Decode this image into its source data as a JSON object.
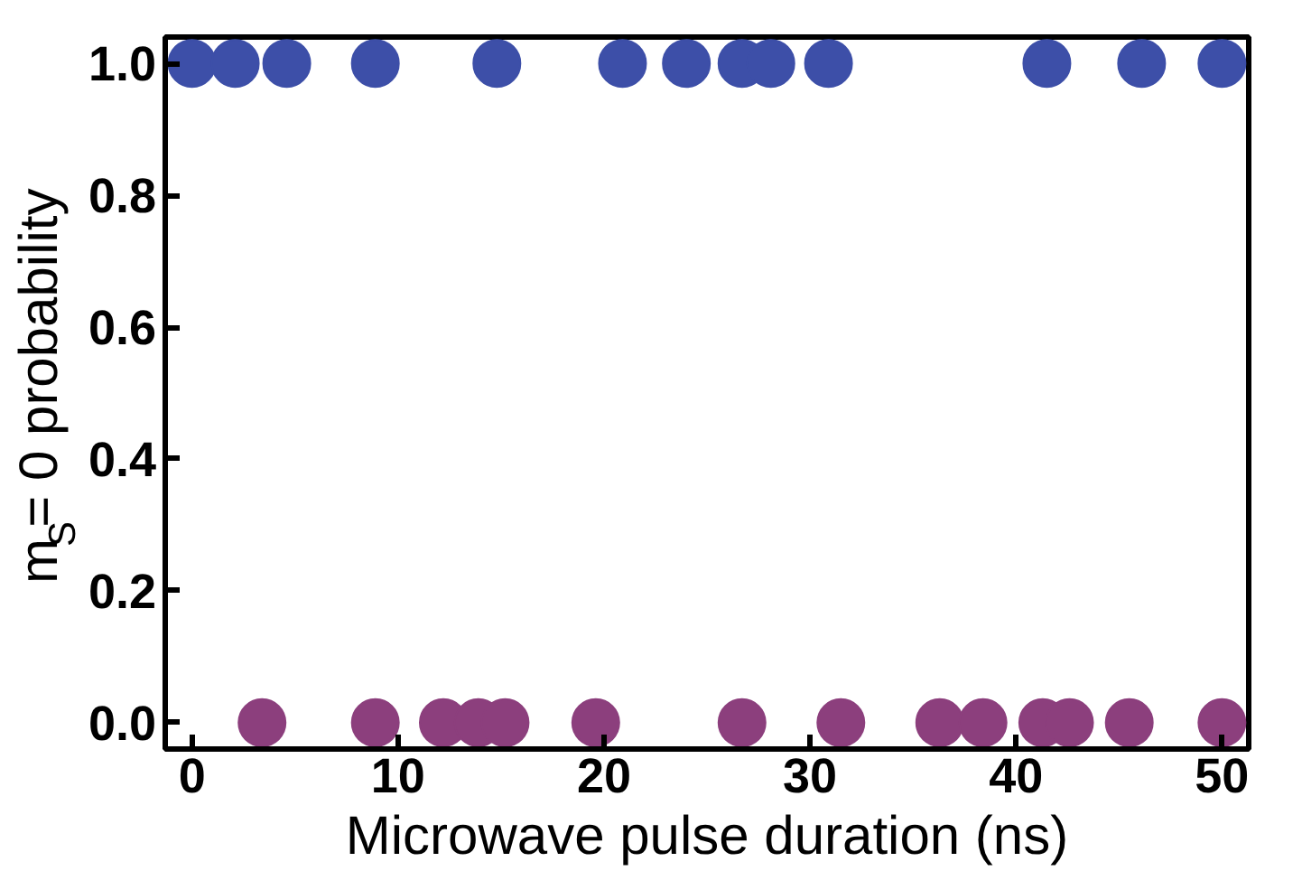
{
  "chart_data": {
    "type": "scatter",
    "xlabel": "Microwave pulse duration (ns)",
    "ylabel": "m$_{S}$= 0 probability",
    "xlim": [
      -1.3,
      51.3
    ],
    "ylim": [
      -0.04,
      1.04
    ],
    "xticks": [
      0,
      10,
      20,
      30,
      40,
      50
    ],
    "yticks": [
      {
        "value": 0,
        "label": "0.0"
      },
      {
        "value": 0.2,
        "label": "0.2"
      },
      {
        "value": 0.4,
        "label": "0.4"
      },
      {
        "value": 0.6,
        "label": "0.6"
      },
      {
        "value": 0.8,
        "label": "0.8"
      },
      {
        "value": 1,
        "label": "1.0"
      }
    ],
    "grid": false,
    "marker": "circle",
    "series": [
      {
        "color": "#3d4fa8",
        "x": [
          0,
          2.1,
          4.6,
          8.9,
          14.8,
          20.9,
          24.0,
          26.7,
          28.1,
          30.9,
          41.5,
          46.1,
          50.0
        ],
        "values": [
          1,
          1,
          1,
          1,
          1,
          1,
          1,
          1,
          1,
          1,
          1,
          1,
          1
        ]
      },
      {
        "color": "#8c3f7d",
        "x": [
          3.4,
          8.9,
          12.2,
          13.9,
          15.2,
          19.6,
          26.7,
          31.5,
          36.3,
          38.4,
          41.3,
          42.6,
          45.5,
          50.0
        ],
        "values": [
          0,
          0,
          0,
          0,
          0,
          0,
          0,
          0,
          0,
          0,
          0,
          0,
          0,
          0
        ]
      }
    ]
  }
}
